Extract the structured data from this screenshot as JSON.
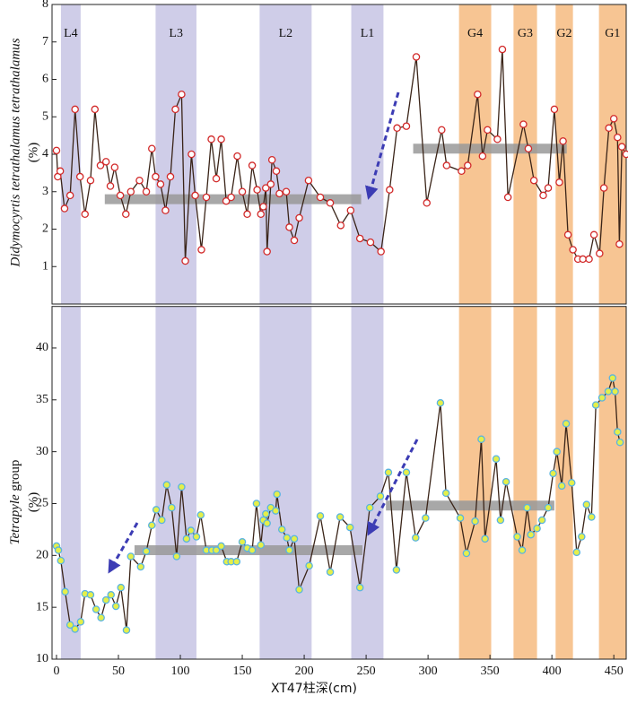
{
  "chart_data": [
    {
      "type": "line",
      "ylabel": "Didymocyrtis tetrathalamus tetrathalamus",
      "yunit": "(%)",
      "xlim": [
        -3.6,
        460
      ],
      "ylim": [
        0,
        8
      ],
      "yticks": [
        1,
        2,
        3,
        4,
        5,
        6,
        7,
        8
      ],
      "line_color": "#3a2418",
      "marker_fill": "#ffffff",
      "marker_edge": "#d22a2a",
      "zones": [
        {
          "label": "L4",
          "x": [
            3.6,
            19.5
          ],
          "color": "#cfcde8"
        },
        {
          "label": "L3",
          "x": [
            80,
            113
          ],
          "color": "#cfcde8"
        },
        {
          "label": "L2",
          "x": [
            164,
            206
          ],
          "color": "#cfcde8"
        },
        {
          "label": "L1",
          "x": [
            238,
            264
          ],
          "color": "#cfcde8"
        },
        {
          "label": "G4",
          "x": [
            325,
            351
          ],
          "color": "#f7c593"
        },
        {
          "label": "G3",
          "x": [
            369,
            388
          ],
          "color": "#f7c593"
        },
        {
          "label": "G2",
          "x": [
            403,
            417
          ],
          "color": "#f7c593"
        },
        {
          "label": "G1",
          "x": [
            438,
            460
          ],
          "color": "#f7c593"
        }
      ],
      "means": [
        {
          "x": [
            39,
            246
          ],
          "y": 2.8
        },
        {
          "x": [
            288,
            412
          ],
          "y": 4.15
        }
      ],
      "mean_color": "#999999",
      "x": [
        0,
        1,
        3,
        6.5,
        11,
        15,
        19,
        23,
        27.5,
        31,
        35.5,
        40,
        43.5,
        47,
        51.5,
        56,
        60,
        67,
        72.5,
        77,
        80,
        84,
        88,
        92,
        96,
        101,
        104,
        109,
        112,
        117,
        121,
        125,
        129,
        133,
        137,
        141,
        146,
        150,
        154,
        158,
        162,
        165,
        167,
        169,
        170,
        173,
        174,
        177.5,
        180,
        185.5,
        188,
        192,
        196,
        203.5,
        213,
        221,
        229.5,
        237.5,
        245,
        253.5,
        262,
        269,
        275,
        282.5,
        290.5,
        299,
        311,
        315,
        327,
        332,
        340,
        344,
        348,
        356,
        360,
        364.5,
        377,
        381,
        385.5,
        393,
        397,
        402,
        406,
        409,
        413,
        417,
        421,
        425,
        430,
        434,
        438.5,
        442,
        446,
        450,
        453,
        454.5,
        456.5,
        460
      ],
      "values": [
        4.1,
        3.4,
        3.55,
        2.55,
        2.9,
        5.2,
        3.4,
        2.4,
        3.3,
        5.2,
        3.7,
        3.8,
        3.15,
        3.65,
        2.9,
        2.4,
        3.0,
        3.3,
        3.0,
        4.15,
        3.4,
        3.2,
        2.5,
        3.4,
        5.2,
        5.6,
        1.15,
        4.0,
        2.9,
        1.45,
        2.85,
        4.4,
        3.35,
        4.4,
        2.75,
        2.85,
        3.95,
        3.0,
        2.4,
        3.7,
        3.05,
        2.4,
        2.6,
        3.1,
        1.4,
        3.2,
        3.85,
        3.55,
        2.95,
        3.0,
        2.05,
        1.7,
        2.3,
        3.3,
        2.85,
        2.7,
        2.1,
        2.5,
        1.75,
        1.65,
        1.4,
        3.05,
        4.7,
        4.75,
        6.6,
        2.7,
        4.65,
        3.7,
        3.55,
        3.7,
        5.6,
        3.95,
        4.65,
        4.4,
        6.8,
        2.85,
        4.8,
        4.15,
        3.3,
        2.9,
        3.1,
        5.2,
        3.25,
        4.35,
        1.85,
        1.45,
        1.2,
        1.2,
        1.2,
        1.85,
        1.35,
        3.1,
        4.7,
        4.95,
        4.45,
        1.6,
        4.2,
        4.0
      ]
    },
    {
      "type": "line",
      "ylabel_italic": "Tetrapyle",
      "ylabel_rest": " group",
      "yunit": "(%)",
      "xlabel": "XT47柱深(cm)",
      "xlim": [
        -3.6,
        460
      ],
      "ylim": [
        10,
        44
      ],
      "xticks": [
        0,
        50,
        100,
        150,
        200,
        250,
        300,
        350,
        400,
        450
      ],
      "yticks": [
        10,
        15,
        20,
        25,
        30,
        35,
        40
      ],
      "line_color": "#3a2418",
      "marker_fill": "#e4ef4a",
      "marker_edge": "#5ab4e0",
      "means": [
        {
          "x": [
            63,
            247
          ],
          "y": 20.5
        },
        {
          "x": [
            266,
            402
          ],
          "y": 24.8
        }
      ],
      "mean_color": "#999999",
      "x": [
        0,
        1.5,
        3.5,
        7,
        11,
        15,
        19.5,
        23,
        27.5,
        32,
        36,
        40,
        44,
        48,
        52,
        56.5,
        60,
        68,
        72.5,
        77,
        80.5,
        85,
        89,
        93,
        97,
        101,
        105,
        108.5,
        113,
        116.5,
        121,
        125.5,
        129,
        133,
        137.5,
        141,
        145.5,
        150,
        154,
        158,
        161.5,
        165,
        167,
        169,
        170,
        173,
        177,
        178,
        182,
        186,
        188,
        192,
        196,
        204,
        213,
        221,
        229,
        237,
        245,
        253,
        261.5,
        268,
        274.5,
        282.5,
        290,
        298,
        310,
        314.5,
        326,
        331,
        338,
        343,
        346,
        355,
        358.5,
        363,
        372,
        376,
        380,
        383,
        388,
        392,
        397,
        401,
        404,
        408,
        411.5,
        416,
        420,
        424,
        428,
        432,
        435.5,
        440.5,
        445.5,
        449,
        451,
        453,
        455
      ],
      "values": [
        20.9,
        20.5,
        19.5,
        16.5,
        13.3,
        12.9,
        13.6,
        16.3,
        16.2,
        14.8,
        14.0,
        15.7,
        16.2,
        15.1,
        16.9,
        12.8,
        19.9,
        18.9,
        20.4,
        22.9,
        24.4,
        23.4,
        26.8,
        24.6,
        19.9,
        26.6,
        21.6,
        22.4,
        21.8,
        23.9,
        20.5,
        20.5,
        20.5,
        20.9,
        19.4,
        19.4,
        19.4,
        21.3,
        20.7,
        20.5,
        25.0,
        21.0,
        23.4,
        24.0,
        23.1,
        24.6,
        24.3,
        25.9,
        22.5,
        21.7,
        20.5,
        21.6,
        16.7,
        19.0,
        23.8,
        18.4,
        23.7,
        22.7,
        16.9,
        24.6,
        25.7,
        28.0,
        18.6,
        28.0,
        21.7,
        23.6,
        34.7,
        26.0,
        23.6,
        20.2,
        23.3,
        31.2,
        21.6,
        29.3,
        23.4,
        27.1,
        21.8,
        20.5,
        24.6,
        22.0,
        22.6,
        23.4,
        24.6,
        27.9,
        30.0,
        26.7,
        32.7,
        27.0,
        20.3,
        21.8,
        24.9,
        23.7,
        34.5,
        35.2,
        35.8,
        37.1,
        35.8,
        31.9,
        30.9
      ]
    }
  ]
}
